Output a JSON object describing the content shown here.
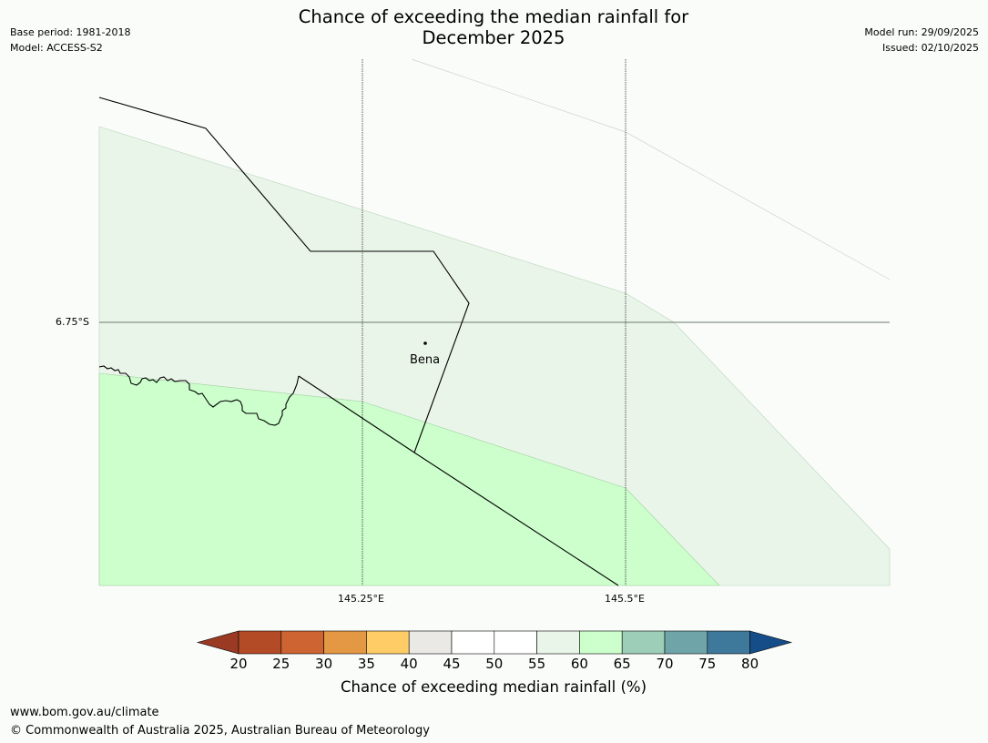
{
  "header": {
    "base_period": "Base period: 1981-2018",
    "model": "Model: ACCESS-S2",
    "model_run": "Model run: 29/09/2025",
    "issued": "Issued: 02/10/2025",
    "title_line1": "Chance of exceeding the median rainfall for",
    "title_line2": "December 2025"
  },
  "map": {
    "lat_gridline_label": "6.75°S",
    "lon_gridline_labels": [
      "145.25°E",
      "145.5°E"
    ],
    "place": {
      "name": "Bena"
    },
    "zones": [
      {
        "category": "55-60",
        "color": "#eaf5ea"
      },
      {
        "category": "60-65",
        "color": "#ccffcc"
      },
      {
        "category": "50-55",
        "color": "#ffffff"
      }
    ]
  },
  "colorbar": {
    "ticks": [
      "20",
      "25",
      "30",
      "35",
      "40",
      "45",
      "50",
      "55",
      "60",
      "65",
      "70",
      "75",
      "80"
    ],
    "under_color": "#9a3a24",
    "over_color": "#154d88",
    "segment_colors": [
      "#b34b27",
      "#cd6431",
      "#e59844",
      "#ffcc66",
      "#ebe9e6",
      "#ffffff",
      "#ffffff",
      "#eaf5ea",
      "#ccffcc",
      "#9dcfb8",
      "#6fa5a8",
      "#3e789b"
    ],
    "label": "Chance of exceeding median rainfall (%)"
  },
  "footer": {
    "url": "www.bom.gov.au/climate",
    "copyright": "© Commonwealth of Australia 2025, Australian Bureau of Meteorology"
  }
}
